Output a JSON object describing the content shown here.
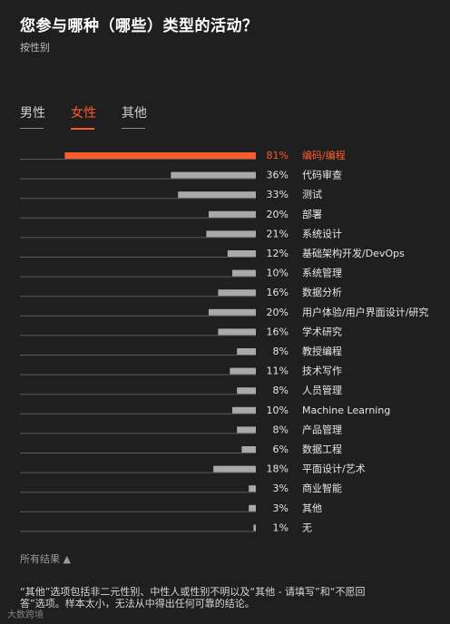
{
  "header": {
    "title": "您参与哪种（哪些）类型的活动？",
    "subtitle": "按性别"
  },
  "tabs": [
    {
      "label": "男性",
      "active": false
    },
    {
      "label": "女性",
      "active": true
    },
    {
      "label": "其他",
      "active": false
    }
  ],
  "colors": {
    "accent": "#ff5a2c",
    "bar": "#a9a9a9",
    "baseline": "#5a5a5a",
    "label": "#e6e6e6"
  },
  "chart_data": {
    "type": "bar",
    "orientation": "horizontal",
    "xlim": [
      0,
      100
    ],
    "highlight_index": 0,
    "categories": [
      "编码/编程",
      "代码审查",
      "测试",
      "部署",
      "系统设计",
      "基础架构开发/DevOps",
      "系统管理",
      "数据分析",
      "用户体验/用户界面设计/研究",
      "学术研究",
      "教授编程",
      "技术写作",
      "人员管理",
      "Machine Learning",
      "产品管理",
      "数据工程",
      "平面设计/艺术",
      "商业智能",
      "其他",
      "无"
    ],
    "values": [
      81,
      36,
      33,
      20,
      21,
      12,
      10,
      16,
      20,
      16,
      8,
      11,
      8,
      10,
      8,
      6,
      18,
      3,
      3,
      1
    ],
    "value_labels": [
      "81%",
      "36%",
      "33%",
      "20%",
      "21%",
      "12%",
      "10%",
      "16%",
      "20%",
      "16%",
      "8%",
      "11%",
      "8%",
      "10%",
      "8%",
      "6%",
      "18%",
      "3%",
      "3%",
      "1%"
    ]
  },
  "footer": {
    "toggle_label": "所有结果 ▲",
    "note": "“其他”选项包括非二元性别、中性人或性别不明以及“其他 - 请填写”和“不愿回答”选项。样本太小，无法从中得出任何可靠的结论。",
    "watermark": "大数跨境"
  }
}
